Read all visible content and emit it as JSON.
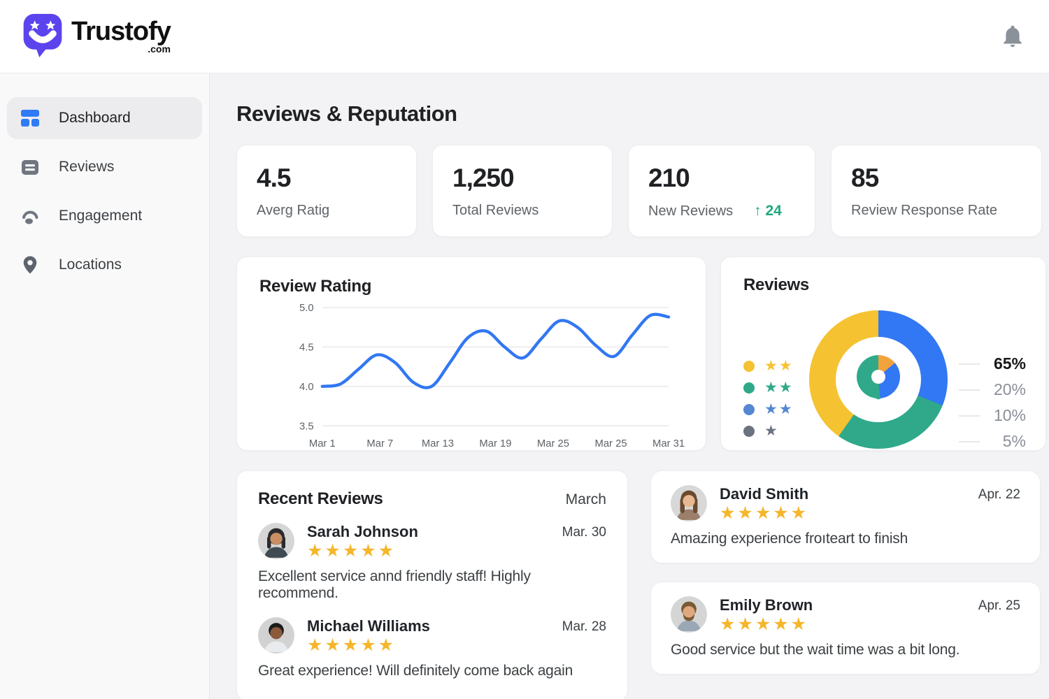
{
  "brand": {
    "name": "Trustofy",
    "tld": ".com",
    "logo_icon": "smiley-speech-bubble",
    "accent_color": "#5B43EE"
  },
  "header": {
    "notification_icon": "bell-icon"
  },
  "sidebar": {
    "items": [
      {
        "label": "Dashboard",
        "icon": "dashboard-grid-icon",
        "active": true
      },
      {
        "label": "Reviews",
        "icon": "reviews-list-icon",
        "active": false
      },
      {
        "label": "Engagement",
        "icon": "engagement-person-icon",
        "active": false
      },
      {
        "label": "Locations",
        "icon": "location-pin-icon",
        "active": false
      }
    ]
  },
  "page": {
    "title": "Reviews & Reputation"
  },
  "stats": [
    {
      "value": "4.5",
      "label": "Averg Ratig"
    },
    {
      "value": "1,250",
      "label": "Total Reviews"
    },
    {
      "value": "210",
      "label": "New Reviews",
      "delta_text": "↑ 24",
      "delta_color": "#21A77D"
    },
    {
      "value": "85",
      "label": "Review Response Rate"
    }
  ],
  "chart_data": [
    {
      "type": "line",
      "title": "Review Rating",
      "x_tick_labels": [
        "Mar 1",
        "Mar 7",
        "Mar 13",
        "Mar 19",
        "Mar 25",
        "Mar 25",
        "Mar 31"
      ],
      "y_ticks": [
        5.0,
        4.5,
        4.0,
        3.5
      ],
      "y_tick_labels": [
        "5.0",
        "4.5",
        "4.0",
        "3.5"
      ],
      "ylim": [
        3.5,
        5.0
      ],
      "values": [
        4.0,
        4.03,
        4.22,
        4.4,
        4.3,
        4.05,
        4.0,
        4.3,
        4.62,
        4.7,
        4.5,
        4.36,
        4.6,
        4.83,
        4.75,
        4.52,
        4.38,
        4.65,
        4.9,
        4.88
      ],
      "line_color": "#3277F3",
      "grid": true,
      "legend": "none"
    },
    {
      "type": "donut",
      "title": "Reviews",
      "values": [
        65,
        20,
        10,
        5
      ],
      "value_labels": [
        "65%",
        "20%",
        "10%",
        "5%"
      ],
      "ring_segments": [
        {
          "color": "#3277F3",
          "from": 0,
          "to": 112
        },
        {
          "color": "#2FA98A",
          "from": 112,
          "to": 215
        },
        {
          "color": "#F5C232",
          "from": 215,
          "to": 360
        }
      ],
      "legend_rows": [
        {
          "color": "#F5C232",
          "stars": "★★"
        },
        {
          "color": "#2FA98A",
          "stars": "★★"
        },
        {
          "color": "#5587D2",
          "stars": "★★"
        },
        {
          "color": "#6B7280",
          "stars": "★"
        }
      ],
      "center_pin": {
        "segments": [
          {
            "color": "#F2A33C",
            "from": 0,
            "to": 50
          },
          {
            "color": "#3277F3",
            "from": 50,
            "to": 175
          },
          {
            "color": "#2FA98A",
            "from": 175,
            "to": 360
          }
        ],
        "tail_color": "#2FA98A"
      }
    }
  ],
  "recent_reviews": {
    "title": "Recent Reviews",
    "period": "March",
    "items": [
      {
        "name": "Sarah Johnson",
        "date": "Mar. 30",
        "stars": "★★★★★",
        "text": "Excellent service annd friendly staff! Highly recommend."
      },
      {
        "name": "Michael Williams",
        "date": "Mar. 28",
        "stars": "★★★★★",
        "text": "Great experience! Will definitely come back again"
      }
    ]
  },
  "side_reviews": [
    {
      "name": "David Smith",
      "date": "Apr. 22",
      "stars": "★★★★★",
      "text": "Amazing experience froıteart to finish"
    },
    {
      "name": "Emily Brown",
      "date": "Apr. 25",
      "stars": "★★★★★",
      "text": "Good service but  the wait time was a bit long."
    }
  ],
  "colors": {
    "star_yellow": "#F5B62B",
    "chart_blue": "#3277F3",
    "donut_yellow": "#F5C232",
    "donut_green": "#2FA98A",
    "sidebar_icon_gray": "#6f7680"
  }
}
